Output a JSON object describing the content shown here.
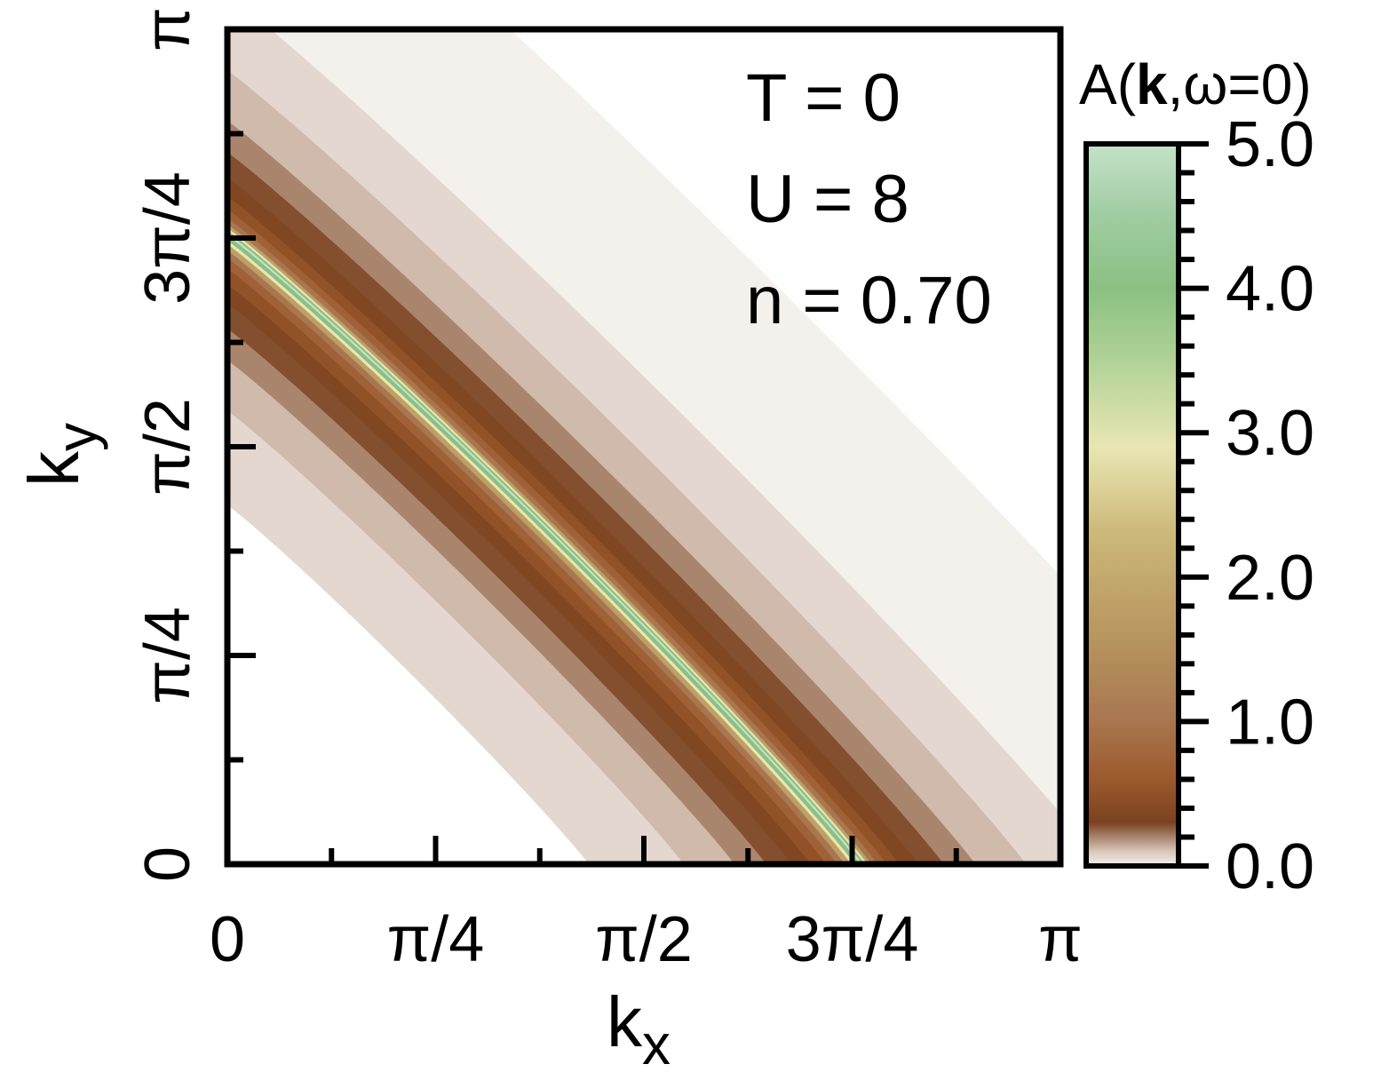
{
  "chart_data": {
    "type": "heatmap",
    "title": "",
    "xlabel": "k",
    "xlabel_sub": "x",
    "ylabel": "k",
    "ylabel_sub": "y",
    "xlim": [
      0,
      3.14159
    ],
    "ylim": [
      0,
      3.14159
    ],
    "x_ticks": [
      {
        "value": 0,
        "label": "0"
      },
      {
        "value": 0.7854,
        "label": "π/4"
      },
      {
        "value": 1.5708,
        "label": "π/2"
      },
      {
        "value": 2.3562,
        "label": "3π/4"
      },
      {
        "value": 3.14159,
        "label": "π"
      }
    ],
    "y_ticks": [
      {
        "value": 0,
        "label": "0"
      },
      {
        "value": 0.7854,
        "label": "π/4"
      },
      {
        "value": 1.5708,
        "label": "π/2"
      },
      {
        "value": 2.3562,
        "label": "3π/4"
      },
      {
        "value": 3.14159,
        "label": "π"
      }
    ],
    "annotations": [
      "T = 0",
      "U = 8",
      "n = 0.70"
    ],
    "fermi_surface": {
      "x_intercept": 2.39,
      "y_intercept": 2.37,
      "diagonal_crossing": 1.24,
      "peak_value": 5.0
    },
    "colorbar": {
      "label_prefix": "A(",
      "label_bold": "k",
      "label_suffix": ",ω=0)",
      "min": 0.0,
      "max": 5.0,
      "ticks": [
        {
          "value": 0.0,
          "label": "0.0"
        },
        {
          "value": 1.0,
          "label": "1.0"
        },
        {
          "value": 2.0,
          "label": "2.0"
        },
        {
          "value": 3.0,
          "label": "3.0"
        },
        {
          "value": 4.0,
          "label": "4.0"
        },
        {
          "value": 5.0,
          "label": "5.0"
        }
      ],
      "colors": [
        {
          "value": 0.0,
          "color": "#f4f0ec"
        },
        {
          "value": 0.1,
          "color": "#d9c7bb"
        },
        {
          "value": 0.3,
          "color": "#7a4220"
        },
        {
          "value": 0.6,
          "color": "#9c5a2c"
        },
        {
          "value": 1.0,
          "color": "#a87650"
        },
        {
          "value": 1.6,
          "color": "#b89660"
        },
        {
          "value": 2.3,
          "color": "#ccb878"
        },
        {
          "value": 2.9,
          "color": "#e9e6b4"
        },
        {
          "value": 3.5,
          "color": "#b0d296"
        },
        {
          "value": 4.0,
          "color": "#8bc082"
        },
        {
          "value": 4.5,
          "color": "#a0cca2"
        },
        {
          "value": 5.0,
          "color": "#c4e2c8"
        }
      ]
    }
  }
}
